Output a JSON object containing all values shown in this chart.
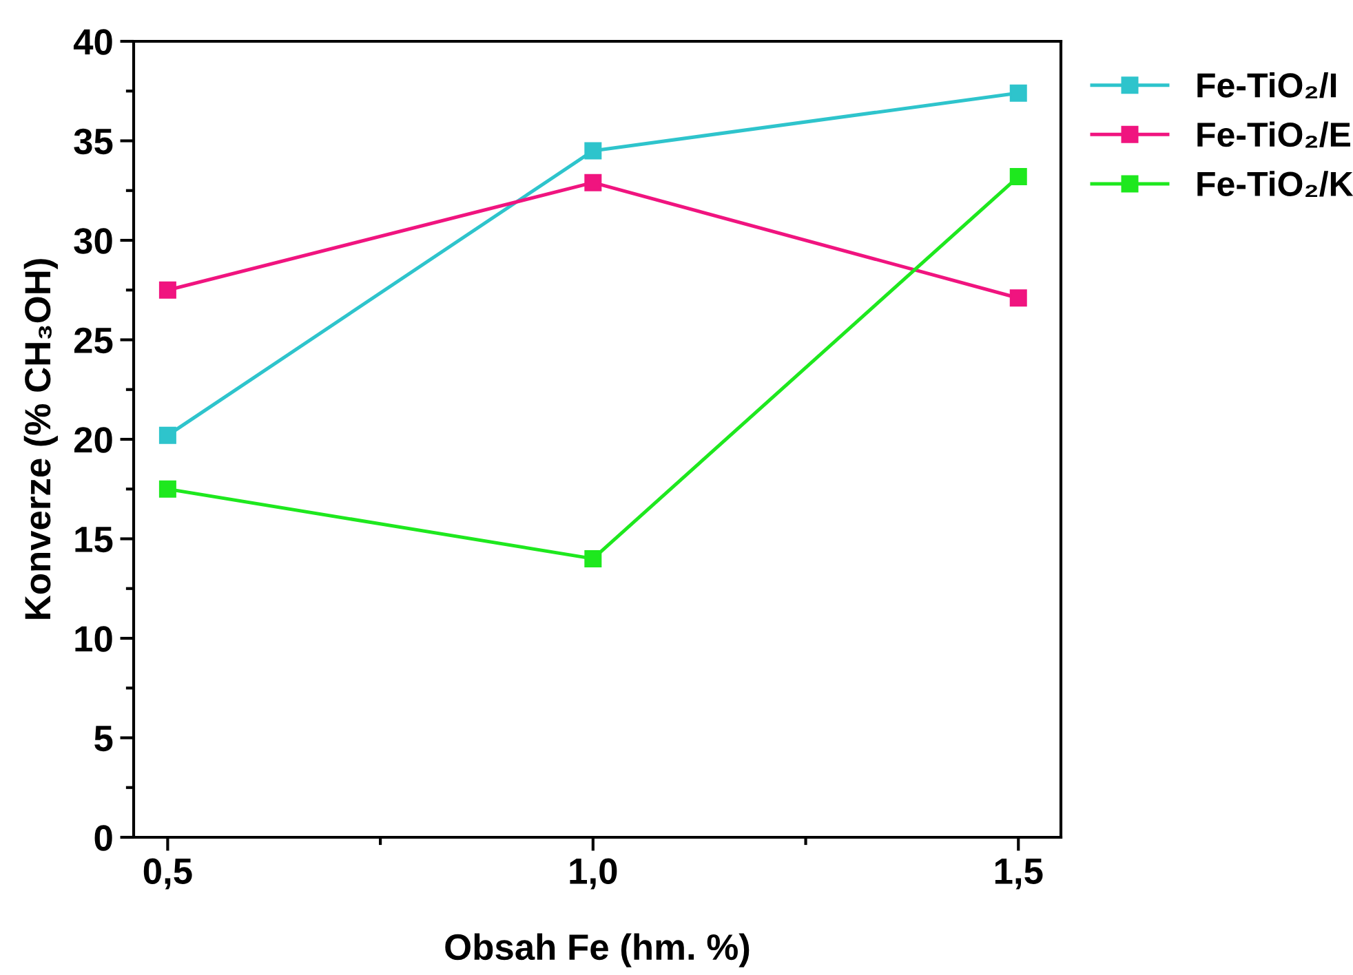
{
  "chart_data": {
    "type": "line",
    "xlabel": "Obsah Fe (hm. %)",
    "ylabel": "Konverze (% CH₃OH)",
    "x": [
      0.5,
      1.0,
      1.5
    ],
    "series": [
      {
        "name": "Fe-TiO₂/I",
        "color": "#2ec4cc",
        "values": [
          20.2,
          34.5,
          37.4
        ]
      },
      {
        "name": "Fe-TiO₂/E",
        "color": "#f0147f",
        "values": [
          27.5,
          32.9,
          27.1
        ]
      },
      {
        "name": "Fe-TiO₂/K",
        "color": "#1ee81e",
        "values": [
          17.5,
          14.0,
          33.2
        ]
      }
    ],
    "xlim": [
      0.46,
      1.55
    ],
    "ylim": [
      0,
      40
    ],
    "xticks": [
      {
        "value": 0.5,
        "label": "0,5"
      },
      {
        "value": 0.75,
        "label": null
      },
      {
        "value": 1.0,
        "label": "1,0"
      },
      {
        "value": 1.25,
        "label": null
      },
      {
        "value": 1.5,
        "label": "1,5"
      }
    ],
    "yticks": [
      0,
      {
        "value": 2.5,
        "label": null
      },
      5,
      {
        "value": 7.5,
        "label": null
      },
      10,
      {
        "value": 12.5,
        "label": null
      },
      15,
      {
        "value": 17.5,
        "label": null
      },
      20,
      {
        "value": 22.5,
        "label": null
      },
      25,
      {
        "value": 27.5,
        "label": null
      },
      30,
      {
        "value": 32.5,
        "label": null
      },
      35,
      {
        "value": 37.5,
        "label": null
      },
      40
    ],
    "marker": "square",
    "line_style": "solid",
    "grid": false,
    "legend": "top right"
  }
}
